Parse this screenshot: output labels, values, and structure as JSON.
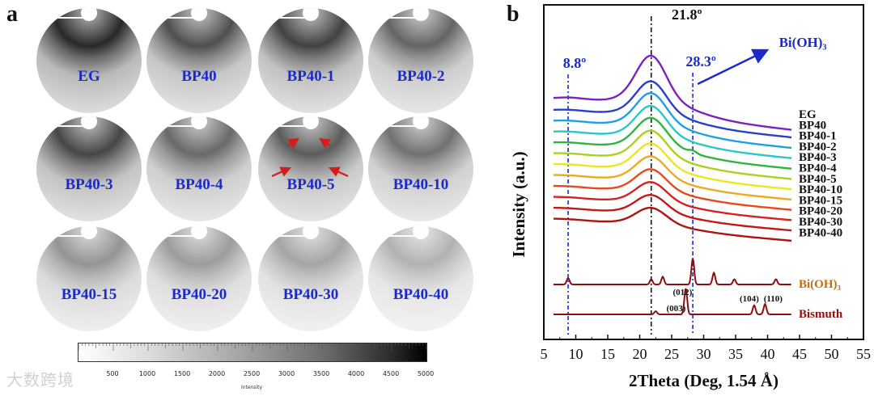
{
  "panel_a": {
    "letter": "a",
    "samples": [
      "EG",
      "BP40",
      "BP40-1",
      "BP40-2",
      "BP40-3",
      "BP40-4",
      "BP40-5",
      "BP40-10",
      "BP40-15",
      "BP40-20",
      "BP40-30",
      "BP40-40"
    ],
    "ring_darkness": [
      1.0,
      0.82,
      0.88,
      0.72,
      0.86,
      0.7,
      0.76,
      0.66,
      0.5,
      0.46,
      0.42,
      0.36
    ],
    "colorbar": {
      "ticks": [
        "500",
        "1000",
        "1500",
        "2000",
        "2500",
        "3000",
        "3500",
        "4000",
        "4500",
        "5000"
      ],
      "title": "Intensity"
    }
  },
  "watermark": "大数跨境",
  "chart_data": {
    "type": "line",
    "panel_letter": "b",
    "xlabel": "2Theta (Deg, 1.54 Å)",
    "ylabel": "Intensity (a.u.)",
    "xlim": [
      5,
      55
    ],
    "xticks": [
      5,
      10,
      15,
      20,
      25,
      30,
      35,
      40,
      45,
      50,
      55
    ],
    "reference_lines": [
      {
        "x": 8.8,
        "label": "8.8º",
        "color": "#1a2bc9"
      },
      {
        "x": 21.8,
        "label": "21.8º",
        "color": "#111111"
      },
      {
        "x": 28.3,
        "label": "28.3º",
        "color": "#1a2bc9"
      }
    ],
    "arrow_label": "Bi(OH)₃",
    "series": [
      {
        "name": "EG",
        "color": "#7a22c2",
        "amp": 1.0
      },
      {
        "name": "BP40",
        "color": "#2a3fd0",
        "amp": 0.72
      },
      {
        "name": "BP40-1",
        "color": "#1e9fe6",
        "amp": 0.7
      },
      {
        "name": "BP40-2",
        "color": "#27c9c7",
        "amp": 0.66
      },
      {
        "name": "BP40-3",
        "color": "#2fb43c",
        "amp": 0.64
      },
      {
        "name": "BP40-4",
        "color": "#a8d21e",
        "amp": 0.6
      },
      {
        "name": "BP40-5",
        "color": "#eee51e",
        "amp": 0.56
      },
      {
        "name": "BP40-10",
        "color": "#f0a91e",
        "amp": 0.52
      },
      {
        "name": "BP40-15",
        "color": "#e8481c",
        "amp": 0.48
      },
      {
        "name": "BP40-20",
        "color": "#d42222",
        "amp": 0.44
      },
      {
        "name": "BP40-30",
        "color": "#c41818",
        "amp": 0.4
      },
      {
        "name": "BP40-40",
        "color": "#aa1414",
        "amp": 0.36
      }
    ],
    "references": [
      {
        "name": "Bi(OH)₃",
        "label_color": "#c96a10",
        "color": "#8b1010",
        "peaks": [
          [
            8.8,
            0.25
          ],
          [
            21.8,
            0.2
          ],
          [
            23.6,
            0.3
          ],
          [
            28.3,
            1.0
          ],
          [
            31.6,
            0.45
          ],
          [
            34.8,
            0.2
          ],
          [
            41.3,
            0.2
          ]
        ]
      },
      {
        "name": "Bismuth",
        "label_color": "#8b1010",
        "color": "#8b1010",
        "peaks": [
          [
            22.5,
            0.12
          ],
          [
            27.2,
            1.0
          ],
          [
            37.9,
            0.35
          ],
          [
            39.6,
            0.4
          ]
        ],
        "hkl": [
          "(003)",
          "(012)",
          "(104)",
          "(110)"
        ]
      }
    ]
  }
}
